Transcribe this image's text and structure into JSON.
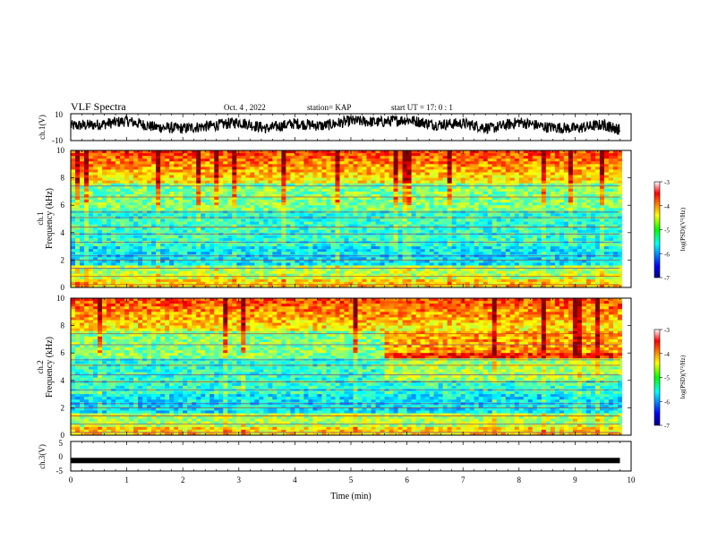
{
  "header": {
    "title": "VLF Spectra",
    "date": "Oct. 4 , 2022",
    "station": "station= KAP",
    "start_ut": "start UT = 17: 0 : 1"
  },
  "chart_data": [
    {
      "type": "line",
      "panel": "ch1-waveform",
      "ylabel": "ch.1(V)",
      "ylim": [
        -10,
        10
      ],
      "yticks": [
        -10,
        10
      ],
      "xlim": [
        0,
        10
      ],
      "series": [
        {
          "x": [
            0,
            0.5,
            1,
            1.5,
            2,
            2.5,
            3,
            3.5,
            4,
            4.5,
            5,
            5.5,
            6,
            6.5,
            7,
            7.5,
            8,
            8.5,
            9,
            9.5,
            9.8
          ],
          "values": [
            1,
            2,
            5,
            0,
            -1,
            1,
            4,
            -1,
            3,
            1,
            5,
            4,
            6,
            2,
            3,
            -1,
            4,
            0,
            -1,
            2,
            -2
          ]
        }
      ],
      "color": "#000000"
    },
    {
      "type": "heatmap",
      "panel": "ch1-spectrogram",
      "ylabel": "ch.1\nFrequency (kHz)",
      "ylim": [
        0,
        10
      ],
      "yticks": [
        0,
        2,
        4,
        6,
        8,
        10
      ],
      "xlim": [
        0,
        10
      ],
      "colorbar": {
        "label": "log(PSD)(V²/Hz)",
        "range": [
          -7,
          -3
        ],
        "ticks": [
          -3,
          -4,
          -5,
          -6,
          -7
        ]
      }
    },
    {
      "type": "heatmap",
      "panel": "ch2-spectrogram",
      "ylabel": "ch.2\nFrequency (kHz)",
      "ylim": [
        0,
        10
      ],
      "yticks": [
        0,
        2,
        4,
        6,
        8,
        10
      ],
      "xlim": [
        0,
        10
      ],
      "colorbar": {
        "label": "log(PSD)(V²/Hz)",
        "range": [
          -7,
          -3
        ],
        "ticks": [
          -3,
          -4,
          -5,
          -6,
          -7
        ]
      }
    },
    {
      "type": "line",
      "panel": "ch3-waveform",
      "ylabel": "ch.3(V)",
      "ylim": [
        -5,
        5
      ],
      "yticks": [
        -5,
        0,
        5
      ],
      "xlim": [
        0,
        10
      ],
      "xticks": [
        0,
        1,
        2,
        3,
        4,
        5,
        6,
        7,
        8,
        9,
        10
      ],
      "xlabel": "Time (min)",
      "series": [
        {
          "x": [
            0,
            9.8
          ],
          "values": [
            -1,
            -1
          ]
        }
      ],
      "color": "#000000"
    }
  ]
}
